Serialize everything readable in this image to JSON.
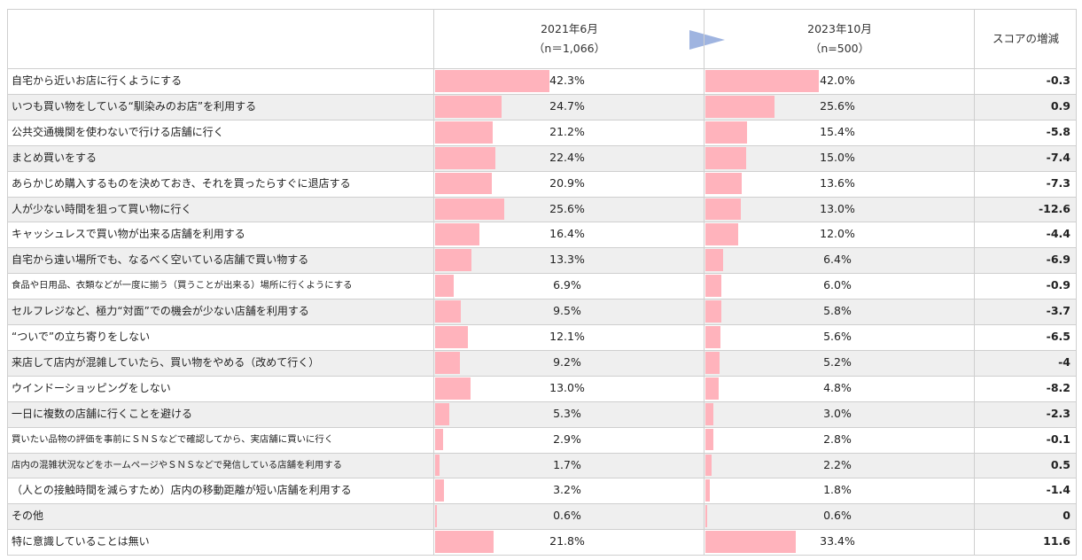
{
  "header": {
    "col1_title": "2021年6月",
    "col1_n": "（n＝1,066）",
    "col2_title": "2023年10月",
    "col2_n": "（n=500）",
    "col3_title": "スコアの増減"
  },
  "colors": {
    "bar": "#ffb3bc",
    "alt_row": "#efefef",
    "arrow": "#9fb4e0"
  },
  "chart_data": {
    "type": "bar",
    "orientation": "horizontal",
    "categories": [
      "自宅から近いお店に行くようにする",
      "いつも買い物をしている“馴染みのお店”を利用する",
      "公共交通機関を使わないで行ける店舗に行く",
      "まとめ買いをする",
      "あらかじめ購入するものを決めておき、それを買ったらすぐに退店する",
      "人が少ない時間を狙って買い物に行く",
      "キャッシュレスで買い物が出来る店舗を利用する",
      "自宅から遠い場所でも、なるべく空いている店舗で買い物する",
      "食品や日用品、衣類などが一度に揃う（買うことが出来る）場所に行くようにする",
      "セルフレジなど、極力“対面”での機会が少ない店舗を利用する",
      "“ついで”の立ち寄りをしない",
      "来店して店内が混雑していたら、買い物をやめる（改めて行く）",
      "ウインドーショッピングをしない",
      "一日に複数の店舗に行くことを避ける",
      "買いたい品物の評価を事前にＳＮＳなどで確認してから、実店舗に買いに行く",
      "店内の混雑状況などをホームページやＳＮＳなどで発信している店舗を利用する",
      "（人との接触時間を減らすため）店内の移動距離が短い店舗を利用する",
      "その他",
      "特に意識していることは無い"
    ],
    "series": [
      {
        "name": "2021年6月",
        "values": [
          42.3,
          24.7,
          21.2,
          22.4,
          20.9,
          25.6,
          16.4,
          13.3,
          6.9,
          9.5,
          12.1,
          9.2,
          13.0,
          5.3,
          2.9,
          1.7,
          3.2,
          0.6,
          21.8
        ],
        "labels": [
          "42.3%",
          "24.7%",
          "21.2%",
          "22.4%",
          "20.9%",
          "25.6%",
          "16.4%",
          "13.3%",
          "6.9%",
          "9.5%",
          "12.1%",
          "9.2%",
          "13.0%",
          "5.3%",
          "2.9%",
          "1.7%",
          "3.2%",
          "0.6%",
          "21.8%"
        ]
      },
      {
        "name": "2023年10月",
        "values": [
          42.0,
          25.6,
          15.4,
          15.0,
          13.6,
          13.0,
          12.0,
          6.4,
          6.0,
          5.8,
          5.6,
          5.2,
          4.8,
          3.0,
          2.8,
          2.2,
          1.8,
          0.6,
          33.4
        ],
        "labels": [
          "42.0%",
          "25.6%",
          "15.4%",
          "15.0%",
          "13.6%",
          "13.0%",
          "12.0%",
          "6.4%",
          "6.0%",
          "5.8%",
          "5.6%",
          "5.2%",
          "4.8%",
          "3.0%",
          "2.8%",
          "2.2%",
          "1.8%",
          "0.6%",
          "33.4%"
        ]
      }
    ],
    "score_change": [
      "-0.3",
      "0.9",
      "-5.8",
      "-7.4",
      "-7.3",
      "-12.6",
      "-4.4",
      "-6.9",
      "-0.9",
      "-3.7",
      "-6.5",
      "-4",
      "-8.2",
      "-2.3",
      "-0.1",
      "0.5",
      "-1.4",
      "0",
      "11.6"
    ],
    "xlim": [
      0,
      100
    ]
  }
}
